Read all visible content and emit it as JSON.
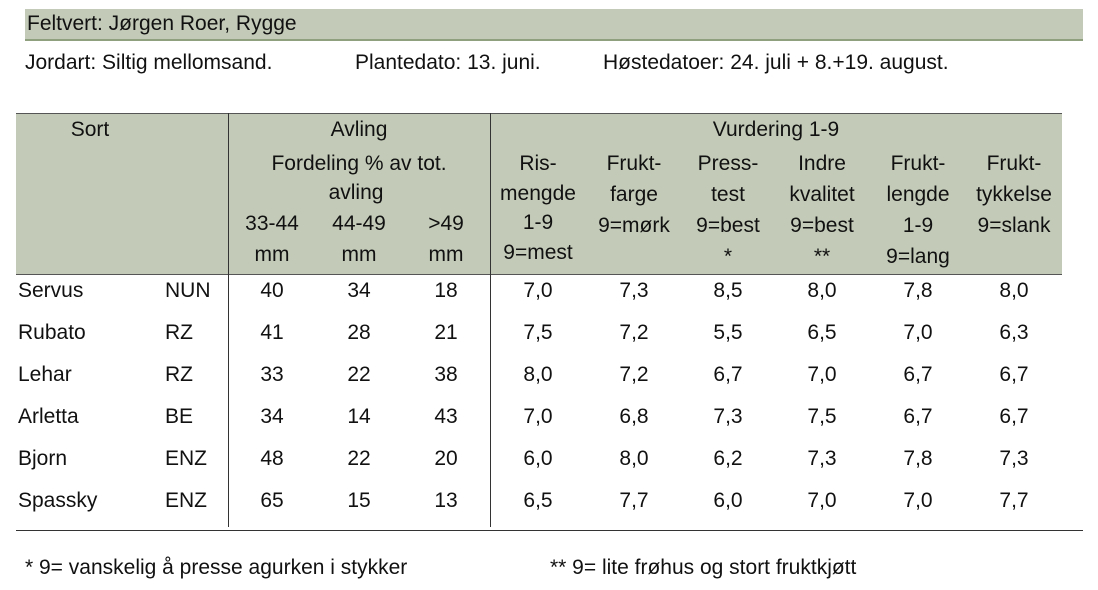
{
  "header": {
    "title": "Feltvert: Jørgen Roer, Rygge"
  },
  "info": [
    "Jordart: Siltig mellomsand.",
    "Plantedato: 13. juni.",
    "Høstedatoer: 24. juli + 8.+19. august."
  ],
  "table": {
    "groups": [
      "Sort",
      "Avling",
      "Vurdering 1-9"
    ],
    "subgroup": [
      "Fordeling % av tot.",
      "avling"
    ],
    "columns": [
      [
        "33-44",
        "mm"
      ],
      [
        "44-49",
        "mm"
      ],
      [
        ">49",
        "mm"
      ],
      [
        "Ris-",
        "mengde",
        "1-9",
        "9=mest"
      ],
      [
        "Frukt-",
        "farge",
        "9=mørk"
      ],
      [
        "Press-",
        "test",
        "9=best",
        "*"
      ],
      [
        "Indre",
        "kvalitet",
        "9=best",
        "**"
      ],
      [
        "Frukt-",
        "lengde",
        "1-9",
        "9=lang"
      ],
      [
        "Frukt-",
        "tykkelse",
        "9=slank"
      ]
    ],
    "rows": [
      [
        "Servus",
        "NUN",
        "40",
        "34",
        "18",
        "7,0",
        "7,3",
        "8,5",
        "8,0",
        "7,8",
        "8,0"
      ],
      [
        "Rubato",
        "RZ",
        "41",
        "28",
        "21",
        "7,5",
        "7,2",
        "5,5",
        "6,5",
        "7,0",
        "6,3"
      ],
      [
        "Lehar",
        "RZ",
        "33",
        "22",
        "38",
        "8,0",
        "7,2",
        "6,7",
        "7,0",
        "6,7",
        "6,7"
      ],
      [
        "Arletta",
        "BE",
        "34",
        "14",
        "43",
        "7,0",
        "6,8",
        "7,3",
        "7,5",
        "6,7",
        "6,7"
      ],
      [
        "Bjorn",
        "ENZ",
        "48",
        "22",
        "20",
        "6,0",
        "8,0",
        "6,2",
        "7,3",
        "7,8",
        "7,3"
      ],
      [
        "Spassky",
        "ENZ",
        "65",
        "15",
        "13",
        "6,5",
        "7,7",
        "6,0",
        "7,0",
        "7,0",
        "7,7"
      ]
    ]
  },
  "footnotes": [
    "* 9= vanskelig å presse agurken i stykker",
    "** 9= lite frøhus og stort fruktkjøtt"
  ]
}
